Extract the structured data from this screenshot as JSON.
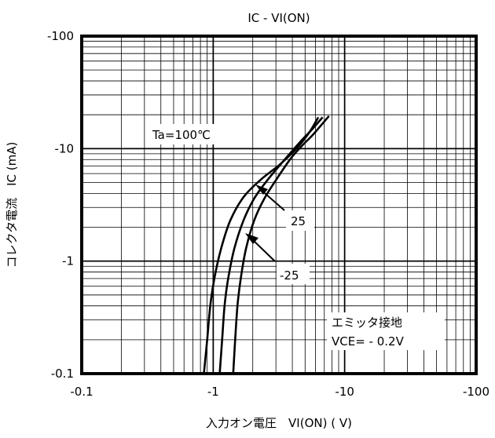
{
  "chart_data": {
    "type": "line",
    "title": "IC - VI(ON)",
    "xlabel": "入力オン電圧　VI(ON) ( V)",
    "ylabel": "コレクタ電流　IC (mA)",
    "x_scale": "log",
    "y_scale": "log",
    "x_axis_inverted_sign": true,
    "y_axis_inverted_sign": true,
    "xlim": [
      -0.1,
      -100
    ],
    "ylim": [
      -0.1,
      -100
    ],
    "x_ticks": [
      "-0.1",
      "-1",
      "-10",
      "-100"
    ],
    "y_ticks": [
      "-100",
      "-10",
      "-1",
      "-0.1"
    ],
    "grid": true,
    "series": [
      {
        "name": "100℃",
        "x": [
          -0.85,
          -0.9,
          -0.95,
          -1.02,
          -1.15,
          -1.35,
          -1.7,
          -2.3,
          -3.2,
          -4.3,
          -5.4,
          -6.3
        ],
        "y": [
          -0.1,
          -0.2,
          -0.4,
          -0.7,
          -1.3,
          -2.3,
          -3.7,
          -5.3,
          -7.2,
          -10,
          -14,
          -19
        ]
      },
      {
        "name": "25",
        "x": [
          -1.12,
          -1.17,
          -1.22,
          -1.3,
          -1.45,
          -1.7,
          -2.05,
          -2.6,
          -3.5,
          -4.6,
          -5.7,
          -6.8
        ],
        "y": [
          -0.1,
          -0.2,
          -0.4,
          -0.7,
          -1.3,
          -2.3,
          -3.6,
          -5.3,
          -8,
          -11.5,
          -15,
          -19
        ]
      },
      {
        "name": "-25",
        "x": [
          -1.42,
          -1.47,
          -1.53,
          -1.62,
          -1.78,
          -2.05,
          -2.45,
          -3.05,
          -3.9,
          -4.7,
          -5.8,
          -7.6
        ],
        "y": [
          -0.1,
          -0.2,
          -0.4,
          -0.7,
          -1.3,
          -2.3,
          -3.6,
          -5.4,
          -8.2,
          -10.5,
          -13.5,
          -19.5
        ]
      }
    ],
    "annotations": {
      "temp_label": "Ta=100℃",
      "label_25": "25",
      "label_m25": "-25",
      "box_line1": "エミッタ接地",
      "box_line2": "VCE= - 0.2V"
    }
  }
}
